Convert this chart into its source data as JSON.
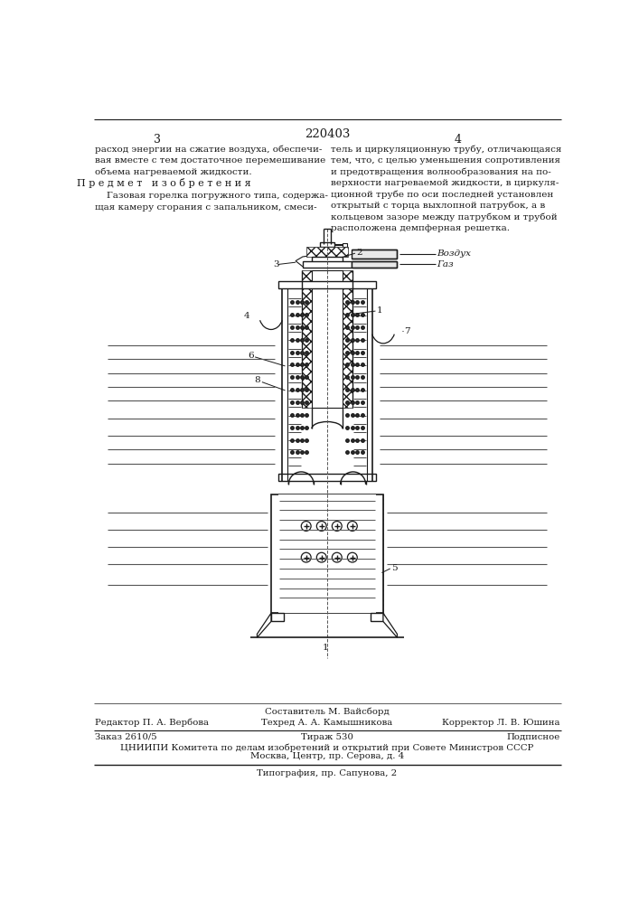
{
  "patent_number": "220403",
  "page_left": "3",
  "page_right": "4",
  "text_left_top": "расход энергии на сжатие воздуха, обеспечи-\nвая вместе с тем достаточное перемешивание\nобъема нагреваемой жидкости.",
  "text_section_title": "П р е д м е т   и з о б р е т е н и я",
  "text_left_bottom": "    Газовая горелка погружного типа, содержа-\nщая камеру сгорания с запальником, смеси-",
  "text_right_top": "тель и циркуляционную трубу, отличающаяся\nтем, что, с целью уменьшения сопротивления\nи предотвращения волнообразования на по-\nверхности нагреваемой жидкости, в циркуля-\nционной трубе по оси последней установлен\nоткрытый с торца выхлопной патрубок, а в\nкольцевом зазоре между патрубком и трубой\nрасположена демпферная решетка.",
  "label_vozdukh": "Воздух",
  "label_gaz": "Газ",
  "footer_compiler": "Составитель М. Вайсборд",
  "footer_editor": "Редактор П. А. Вербова",
  "footer_tech": "Техред А. А. Камышникова",
  "footer_corrector": "Корректор Л. В. Юшина",
  "footer_order": "Заказ 2610/5",
  "footer_tirazh": "Тираж 530",
  "footer_podpisnoe": "Подписное",
  "footer_tsniip": "ЦНИИПИ Комитета по делам изобретений и открытий при Совете Министров СССР",
  "footer_moscow": "Москва, Центр, пр. Серова, д. 4",
  "footer_tipo": "Типография, пр. Сапунова, 2",
  "bg_color": "#ffffff",
  "text_color": "#1a1a1a",
  "line_color": "#1a1a1a"
}
